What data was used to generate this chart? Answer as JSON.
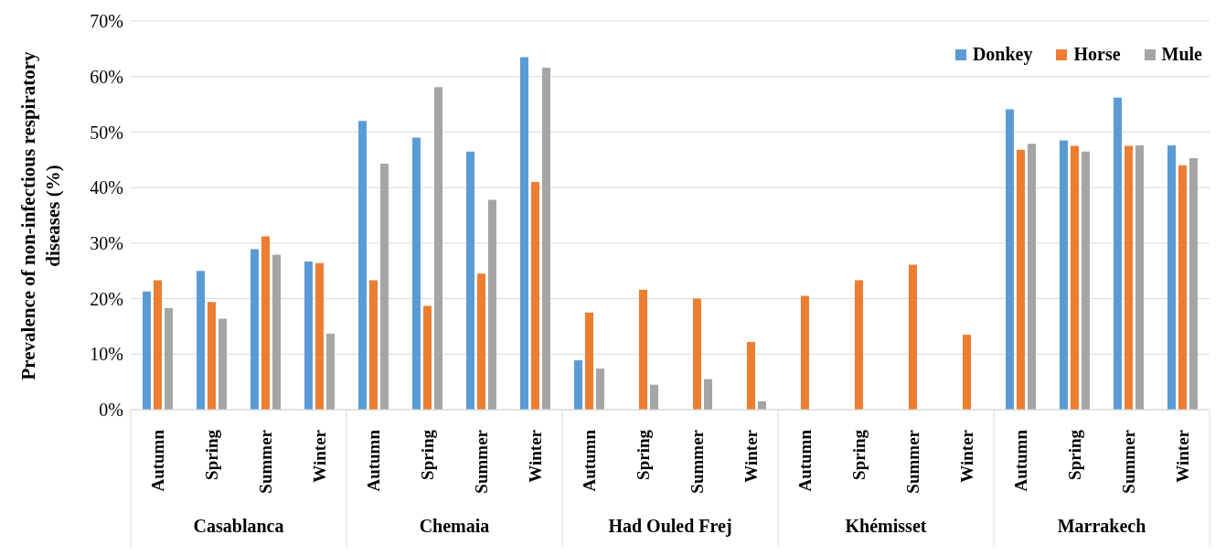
{
  "chart_data": {
    "type": "bar",
    "ylabel": "Prevalence of non-infectious respiratory diseases (%)",
    "categories": [
      "Autumn",
      "Spring",
      "Summer",
      "Winter",
      "Autumn",
      "Spring",
      "Summer",
      "Winter",
      "Autumn",
      "Spring",
      "Summer",
      "Winter",
      "Autumn",
      "Spring",
      "Summer",
      "Winter",
      "Autumn",
      "Spring",
      "Summer",
      "Winter"
    ],
    "annotations": [
      "Casablanca",
      "Chemaia",
      "Had Ouled Frej",
      "Khémisset",
      "Marrakech"
    ],
    "series": [
      {
        "name": "Donkey",
        "color": "#5b9bd5",
        "values": [
          21.3,
          25,
          28.9,
          26.7,
          52,
          49,
          46.5,
          63.5,
          8.9,
          0,
          0,
          0,
          0,
          0,
          0,
          0,
          54.1,
          48.5,
          56.2,
          47.6
        ]
      },
      {
        "name": "Horse",
        "color": "#ed7d31",
        "values": [
          23.3,
          19.4,
          31.2,
          26.4,
          23.3,
          18.7,
          24.5,
          41,
          17.5,
          21.6,
          20,
          12.2,
          20.5,
          23.3,
          26.1,
          13.5,
          46.8,
          47.5,
          47.5,
          44
        ]
      },
      {
        "name": "Mule",
        "color": "#a5a5a5",
        "values": [
          18.3,
          16.4,
          27.9,
          13.7,
          44.3,
          58.1,
          37.8,
          61.6,
          7.4,
          4.5,
          5.5,
          1.5,
          0,
          0,
          0,
          0,
          47.9,
          46.5,
          47.6,
          45.3
        ]
      }
    ],
    "ylim": [
      0,
      70
    ],
    "yticks": [
      {
        "value": 0,
        "label": "0%"
      },
      {
        "value": 10,
        "label": "10%"
      },
      {
        "value": 20,
        "label": "20%"
      },
      {
        "value": 30,
        "label": "30%"
      },
      {
        "value": 40,
        "label": "40%"
      },
      {
        "value": 50,
        "label": "50%"
      },
      {
        "value": 60,
        "label": "60%"
      },
      {
        "value": 70,
        "label": "70%"
      }
    ],
    "grid": "y",
    "legend": "top right"
  }
}
